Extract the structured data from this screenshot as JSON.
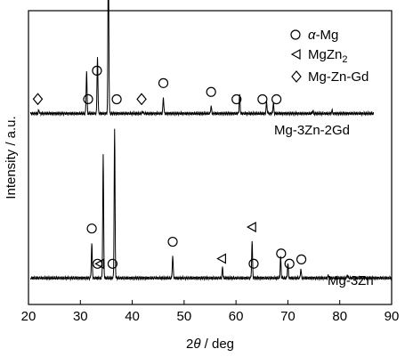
{
  "chart_data": {
    "type": "line",
    "xlabel": "2θ / deg",
    "xlabel_parts": [
      "2",
      "θ",
      " / deg"
    ],
    "ylabel": "Intensity / a.u.",
    "xlim": [
      20,
      90
    ],
    "xticks": [
      20,
      30,
      40,
      50,
      60,
      70,
      80,
      90
    ],
    "legend": {
      "placement": "top-right",
      "entries": [
        {
          "marker": "circle",
          "text": "α-Mg",
          "text_parts": [
            "α",
            "-Mg"
          ]
        },
        {
          "marker": "triangle-left",
          "text": "MgZn2",
          "text_parts": [
            "MgZn",
            "2"
          ]
        },
        {
          "marker": "diamond",
          "text": "Mg-Zn-Gd"
        }
      ]
    },
    "series": [
      {
        "name": "Mg-3Zn-2Gd",
        "baseline": 0.65,
        "x_end": 86.5,
        "peaks": [
          {
            "x": 22.0,
            "h": 0.012
          },
          {
            "x": 31.2,
            "h": 0.145
          },
          {
            "x": 33.3,
            "h": 0.195
          },
          {
            "x": 35.4,
            "h": 0.575
          },
          {
            "x": 42.0,
            "h": 0.008
          },
          {
            "x": 46.0,
            "h": 0.055
          },
          {
            "x": 55.2,
            "h": 0.025
          },
          {
            "x": 60.7,
            "h": 0.065
          },
          {
            "x": 65.9,
            "h": 0.04
          },
          {
            "x": 67.2,
            "h": 0.035
          },
          {
            "x": 74.8,
            "h": 0.008
          },
          {
            "x": 78.5,
            "h": 0.01
          }
        ],
        "markers": [
          {
            "type": "diamond",
            "x": 21.8
          },
          {
            "type": "circle",
            "x": 31.5
          },
          {
            "type": "circle",
            "x": 33.2
          },
          {
            "type": "circle",
            "x": 37.0
          },
          {
            "type": "diamond",
            "x": 41.8
          },
          {
            "type": "circle",
            "x": 46.0
          },
          {
            "type": "circle",
            "x": 55.2
          },
          {
            "type": "circle",
            "x": 60.1
          },
          {
            "type": "circle",
            "x": 65.1
          },
          {
            "type": "circle",
            "x": 67.8
          }
        ]
      },
      {
        "name": "Mg-3Zn",
        "baseline": 0.09,
        "x_end": 90,
        "peaks": [
          {
            "x": 32.2,
            "h": 0.12
          },
          {
            "x": 34.4,
            "h": 0.42
          },
          {
            "x": 36.6,
            "h": 0.505
          },
          {
            "x": 47.8,
            "h": 0.075
          },
          {
            "x": 57.4,
            "h": 0.035
          },
          {
            "x": 63.1,
            "h": 0.125
          },
          {
            "x": 68.6,
            "h": 0.07
          },
          {
            "x": 70.0,
            "h": 0.05
          },
          {
            "x": 72.5,
            "h": 0.03
          },
          {
            "x": 77.8,
            "h": 0.01
          },
          {
            "x": 81.5,
            "h": 0.012
          }
        ],
        "markers": [
          {
            "type": "circle",
            "x": 32.2
          },
          {
            "type": "circle",
            "x": 33.3
          },
          {
            "type": "triangle-left",
            "x": 33.8
          },
          {
            "type": "circle",
            "x": 36.2
          },
          {
            "type": "circle",
            "x": 47.8
          },
          {
            "type": "triangle-left",
            "x": 57.3
          },
          {
            "type": "circle",
            "x": 63.4
          },
          {
            "type": "triangle-left",
            "x": 63.1
          },
          {
            "type": "circle",
            "x": 68.7
          },
          {
            "type": "circle",
            "x": 70.3
          },
          {
            "type": "circle",
            "x": 72.6
          }
        ]
      }
    ]
  }
}
